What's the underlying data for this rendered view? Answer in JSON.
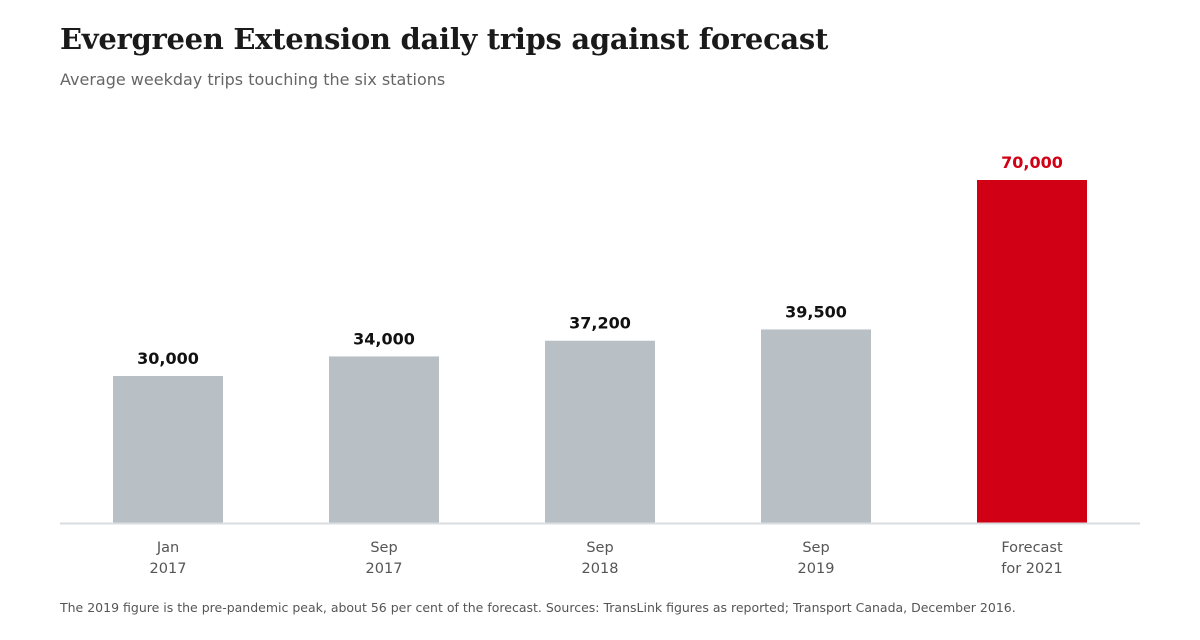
{
  "header": {
    "title": "Evergreen Extension daily trips against forecast",
    "subtitle": "Average weekday trips touching the six stations"
  },
  "footnote": "The 2019 figure is the pre-pandemic peak, about 56 per cent of the forecast. Sources: TransLink figures as reported; Transport Canada, December 2016.",
  "colors": {
    "actual_bar": "#b8c0c6",
    "forecast_bar": "#d10014",
    "value_label": "#111111",
    "forecast_label": "#d10014",
    "baseline": "#d9dde0",
    "axis_label": "#555555"
  },
  "chart_data": {
    "type": "bar",
    "title": "Evergreen Extension daily trips against forecast",
    "subtitle": "Average weekday trips touching the six stations",
    "categories": [
      [
        "Jan",
        "2017"
      ],
      [
        "Sep",
        "2017"
      ],
      [
        "Sep",
        "2018"
      ],
      [
        "Sep",
        "2019"
      ],
      [
        "Forecast",
        "for 2021"
      ]
    ],
    "values": [
      30000,
      34000,
      37200,
      39500,
      70000
    ],
    "value_labels": [
      "30,000",
      "34,000",
      "37,200",
      "39,500",
      "70,000"
    ],
    "highlight_index": 4,
    "ylim": [
      0,
      70000
    ],
    "grid": false,
    "legend": "none",
    "xlabel": "",
    "ylabel": ""
  }
}
